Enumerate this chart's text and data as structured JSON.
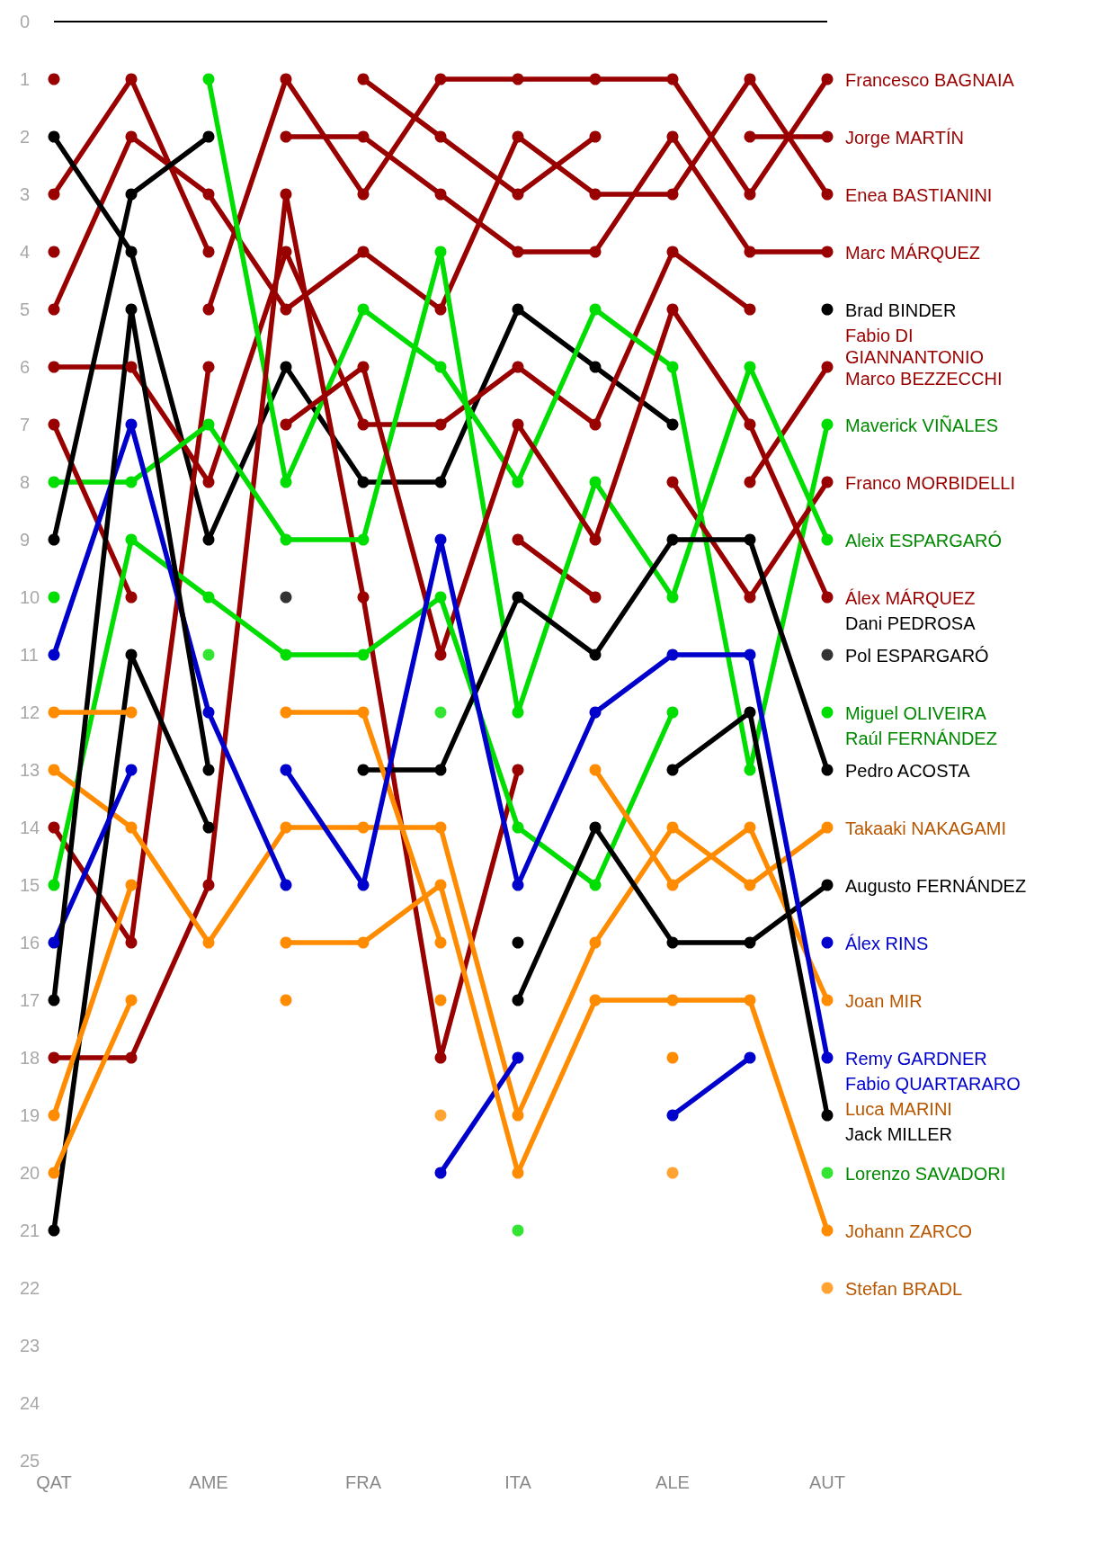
{
  "chart_data": {
    "type": "line",
    "categories": [
      "QAT",
      null,
      "AME",
      null,
      "FRA",
      null,
      "ITA",
      null,
      "ALE",
      null,
      "AUT"
    ],
    "ylim": [
      25,
      0
    ],
    "yticks": [
      0,
      1,
      2,
      3,
      4,
      5,
      6,
      7,
      8,
      9,
      10,
      11,
      12,
      13,
      14,
      15,
      16,
      17,
      18,
      19,
      20,
      21,
      22,
      23,
      24,
      25
    ],
    "grid": false,
    "legend": false,
    "marker": "circle",
    "line_style": "solid",
    "ref_lines": [
      {
        "axis": "y",
        "value": 0,
        "color": "#000000"
      }
    ],
    "series": [
      {
        "name": "Francesco BAGNAIA",
        "color": "#990000",
        "values": [
          1,
          null,
          5,
          1,
          3,
          1,
          1,
          1,
          1,
          3,
          1
        ]
      },
      {
        "name": "Jorge MARTÍN",
        "color": "#990000",
        "values": [
          3,
          1,
          4,
          null,
          1,
          2,
          3,
          2,
          null,
          2,
          2
        ]
      },
      {
        "name": "Enea BASTIANINI",
        "color": "#990000",
        "values": [
          5,
          2,
          3,
          5,
          4,
          5,
          2,
          3,
          3,
          1,
          3
        ]
      },
      {
        "name": "Marc MÁRQUEZ",
        "color": "#990000",
        "values": [
          4,
          null,
          null,
          2,
          2,
          3,
          4,
          4,
          2,
          4,
          4
        ]
      },
      {
        "name": "Brad BINDER",
        "color": "#000000",
        "values": [
          2,
          4,
          9,
          6,
          8,
          8,
          5,
          6,
          7,
          null,
          5
        ]
      },
      {
        "name": "Fabio DI GIANNANTONIO",
        "color": "#990000",
        "values": [
          6,
          6,
          8,
          4,
          7,
          7,
          6,
          7,
          4,
          5,
          null
        ]
      },
      {
        "name": "Marco BEZZECCHI",
        "color": "#990000",
        "values": [
          14,
          16,
          6,
          null,
          null,
          null,
          9,
          10,
          null,
          8,
          6
        ]
      },
      {
        "name": "Maverick VIÑALES",
        "color": "#00dd00",
        "values": [
          10,
          null,
          1,
          8,
          5,
          6,
          8,
          5,
          6,
          13,
          7
        ]
      },
      {
        "name": "Franco MORBIDELLI",
        "color": "#990000",
        "values": [
          18,
          18,
          15,
          3,
          10,
          18,
          13,
          null,
          8,
          10,
          8
        ]
      },
      {
        "name": "Aleix ESPARGARÓ",
        "color": "#00dd00",
        "values": [
          8,
          8,
          7,
          9,
          9,
          4,
          12,
          8,
          10,
          6,
          9
        ]
      },
      {
        "name": "Álex MÁRQUEZ",
        "color": "#990000",
        "values": [
          7,
          10,
          null,
          7,
          6,
          11,
          7,
          9,
          5,
          7,
          10
        ]
      },
      {
        "name": "Pol ESPARGARÓ",
        "type": "scatter",
        "color": "#000000",
        "values": [
          null,
          null,
          null,
          null,
          null,
          null,
          null,
          null,
          null,
          null,
          11
        ]
      },
      {
        "name": "Miguel OLIVEIRA",
        "color": "#00dd00",
        "values": [
          15,
          9,
          10,
          11,
          11,
          10,
          14,
          15,
          12,
          null,
          12
        ]
      },
      {
        "name": "Pedro ACOSTA",
        "color": "#000000",
        "values": [
          9,
          3,
          2,
          null,
          13,
          13,
          10,
          11,
          9,
          9,
          13
        ]
      },
      {
        "name": "Takaaki NAKAGAMI",
        "color": "#ff8c00",
        "values": [
          13,
          14,
          16,
          14,
          14,
          14,
          19,
          16,
          14,
          15,
          14
        ]
      },
      {
        "name": "Augusto FERNÁNDEZ",
        "color": "#000000",
        "values": [
          21,
          11,
          14,
          null,
          null,
          null,
          17,
          14,
          16,
          16,
          15
        ]
      },
      {
        "name": "Álex RINS",
        "color": "#0000cc",
        "values": [
          11,
          7,
          12,
          15,
          null,
          20,
          18,
          null,
          null,
          null,
          16
        ]
      },
      {
        "name": "Joan MIR",
        "color": "#ff8c00",
        "values": [
          19,
          15,
          null,
          12,
          12,
          16,
          null,
          13,
          15,
          14,
          17
        ]
      },
      {
        "name": "Remy GARDNER",
        "color": "#0000cc",
        "values": [
          null,
          null,
          null,
          null,
          null,
          null,
          null,
          null,
          19,
          18,
          null
        ]
      },
      {
        "name": "Fabio QUARTARARO",
        "color": "#0000cc",
        "values": [
          16,
          13,
          null,
          13,
          15,
          9,
          15,
          12,
          11,
          11,
          18
        ]
      },
      {
        "name": "Jack MILLER",
        "color": "#000000",
        "values": [
          17,
          5,
          13,
          null,
          null,
          null,
          16,
          null,
          13,
          12,
          19
        ]
      },
      {
        "name": "Lorenzo SAVADORI",
        "type": "scatter",
        "color": "#00dd00",
        "values": [
          null,
          null,
          null,
          null,
          null,
          null,
          21,
          null,
          null,
          null,
          20
        ]
      },
      {
        "name": "Johann ZARCO",
        "color": "#ff8c00",
        "values": [
          12,
          12,
          null,
          16,
          16,
          15,
          20,
          17,
          17,
          17,
          21
        ]
      },
      {
        "name": "Stefan BRADL",
        "type": "scatter",
        "color": "#ff8c00",
        "values": [
          null,
          null,
          null,
          null,
          null,
          19,
          null,
          null,
          20,
          null,
          22
        ]
      },
      {
        "name": "Dani PEDROSA",
        "type": "scatter",
        "color": "#000000",
        "values": [
          null,
          null,
          null,
          10,
          null,
          null,
          null,
          null,
          null,
          null,
          null
        ]
      },
      {
        "name": "Luca MARINI",
        "color": "#ff8c00",
        "values": [
          20,
          17,
          null,
          17,
          null,
          17,
          null,
          null,
          18,
          null,
          null
        ]
      },
      {
        "name": "Raúl FERNÁNDEZ",
        "type": "scatter",
        "color": "#00dd00",
        "values": [
          null,
          null,
          11,
          null,
          null,
          12,
          null,
          null,
          null,
          null,
          null
        ]
      }
    ]
  }
}
